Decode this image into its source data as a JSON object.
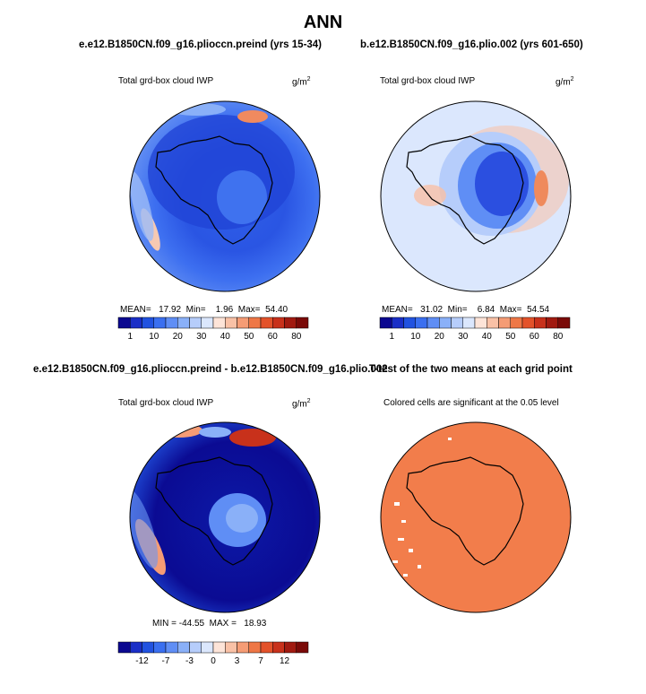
{
  "figure": {
    "title": "ANN",
    "colors": {
      "abs_scale": [
        "#0b0890",
        "#1a2fc7",
        "#2152e0",
        "#3a6ff0",
        "#5f8ef5",
        "#8ab0f8",
        "#b6cdfb",
        "#dbe7fd",
        "#fde4d8",
        "#f9c1a6",
        "#f59c75",
        "#ee7746",
        "#e3522a",
        "#c8311b",
        "#a11a10",
        "#7a0a08"
      ],
      "sig": "#f27d4b"
    }
  },
  "chart_data": [
    {
      "type": "heatmap",
      "id": "panel1",
      "case": "e.e12.B1850CN.f09_g16.plioccn.preind (yrs 15-34)",
      "variable": "Total grd-box cloud IWP",
      "units": "g/m",
      "units_exp": "2",
      "projection": "south polar stereographic",
      "stats": {
        "mean_label": "MEAN=",
        "mean": "17.92",
        "min_label": "Min=",
        "min": "1.96",
        "max_label": "Max=",
        "max": "54.40"
      },
      "colorbar": {
        "tick_labels": [
          "1",
          "10",
          "20",
          "30",
          "40",
          "50",
          "60",
          "80"
        ]
      }
    },
    {
      "type": "heatmap",
      "id": "panel2",
      "case": "b.e12.B1850CN.f09_g16.plio.002 (yrs 601-650)",
      "variable": "Total grd-box cloud IWP",
      "units": "g/m",
      "units_exp": "2",
      "projection": "south polar stereographic",
      "stats": {
        "mean_label": "MEAN=",
        "mean": "31.02",
        "min_label": "Min=",
        "min": "6.84",
        "max_label": "Max=",
        "max": "54.54"
      },
      "colorbar": {
        "tick_labels": [
          "1",
          "10",
          "20",
          "30",
          "40",
          "50",
          "60",
          "80"
        ]
      }
    },
    {
      "type": "heatmap",
      "id": "panel3",
      "case": "e.e12.B1850CN.f09_g16.plioccn.preind - b.e12.B1850CN.f09_g16.plio.002",
      "variable": "Total grd-box cloud IWP",
      "units": "g/m",
      "units_exp": "2",
      "projection": "south polar stereographic",
      "stats": {
        "min_label": "MIN =",
        "min": "-44.55",
        "max_label": "MAX =",
        "max": "18.93"
      },
      "colorbar": {
        "tick_labels": [
          "-12",
          "-7",
          "-3",
          "0",
          "3",
          "7",
          "12"
        ]
      }
    },
    {
      "type": "heatmap",
      "id": "panel4",
      "case": "T-test of the two means at each grid point",
      "subtitle": "Colored cells are significant at the 0.05 level",
      "projection": "south polar stereographic"
    }
  ]
}
